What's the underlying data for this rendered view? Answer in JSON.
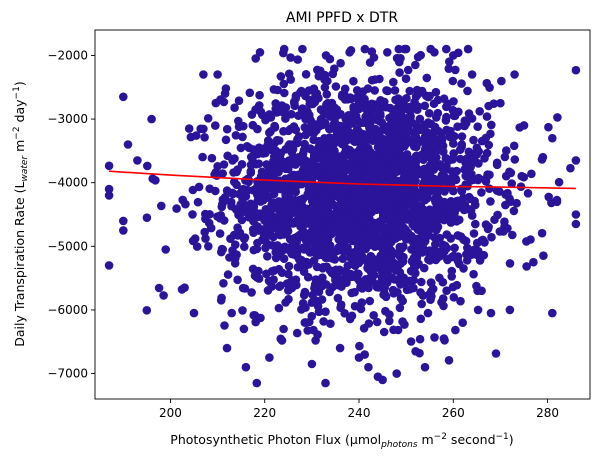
{
  "chart_data": {
    "type": "scatter",
    "title": "AMI PPFD x DTR",
    "xlabel": {
      "main": "Photosynthetic Photon Flux (µmol",
      "sub": "photons",
      "mid": " m",
      "sup1": "−2",
      "post": " second",
      "sup2": "−1",
      "end": ")"
    },
    "ylabel": {
      "main": "Daily Transpiration Rate (L",
      "sub": "water",
      "mid": " m",
      "sup1": "−2",
      "post": " day",
      "sup2": "−1",
      "end": ")"
    },
    "xlim": [
      184,
      289
    ],
    "ylim": [
      -7400,
      -1600
    ],
    "xticks": [
      200,
      220,
      240,
      260,
      280
    ],
    "yticks": [
      -2000,
      -3000,
      -4000,
      -5000,
      -6000,
      -7000
    ],
    "xtick_labels": [
      "200",
      "220",
      "240",
      "260",
      "280"
    ],
    "ytick_labels": [
      "−2000",
      "−3000",
      "−4000",
      "−5000",
      "−6000",
      "−7000"
    ],
    "grid": false,
    "series": [
      {
        "kind": "scatter",
        "color": "#2b1499",
        "cluster": {
          "x_center": 240,
          "x_sd": 14,
          "x_min": 187,
          "x_max": 286,
          "y_center": -4150,
          "y_sd": 880,
          "y_min": -7150,
          "y_max": -1900,
          "count": 2600
        },
        "points": [
          {
            "x": 187,
            "y": -5300
          },
          {
            "x": 187,
            "y": -4100
          },
          {
            "x": 187,
            "y": -4200
          },
          {
            "x": 190,
            "y": -2650
          },
          {
            "x": 190,
            "y": -4750
          },
          {
            "x": 190,
            "y": -4600
          },
          {
            "x": 191,
            "y": -3400
          },
          {
            "x": 193,
            "y": -3650
          },
          {
            "x": 195,
            "y": -4550
          },
          {
            "x": 196,
            "y": -3000
          },
          {
            "x": 199,
            "y": -5050
          },
          {
            "x": 203,
            "y": -5650
          },
          {
            "x": 205,
            "y": -6050
          },
          {
            "x": 207,
            "y": -2300
          },
          {
            "x": 210,
            "y": -2300
          },
          {
            "x": 212,
            "y": -6600
          },
          {
            "x": 213,
            "y": -6050
          },
          {
            "x": 216,
            "y": -6900
          },
          {
            "x": 219,
            "y": -1950
          },
          {
            "x": 221,
            "y": -6750
          },
          {
            "x": 224,
            "y": -6300
          },
          {
            "x": 228,
            "y": -1900
          },
          {
            "x": 230,
            "y": -6850
          },
          {
            "x": 233,
            "y": -2000
          },
          {
            "x": 236,
            "y": -6600
          },
          {
            "x": 238,
            "y": -1950
          },
          {
            "x": 240,
            "y": -6750
          },
          {
            "x": 242,
            "y": -6900
          },
          {
            "x": 244,
            "y": -7050
          },
          {
            "x": 245,
            "y": -7100
          },
          {
            "x": 246,
            "y": -1950
          },
          {
            "x": 248,
            "y": -7000
          },
          {
            "x": 250,
            "y": -1900
          },
          {
            "x": 252,
            "y": -6650
          },
          {
            "x": 254,
            "y": -6900
          },
          {
            "x": 256,
            "y": -1950
          },
          {
            "x": 258,
            "y": -6450
          },
          {
            "x": 260,
            "y": -2000
          },
          {
            "x": 262,
            "y": -6200
          },
          {
            "x": 264,
            "y": -2300
          },
          {
            "x": 266,
            "y": -5700
          },
          {
            "x": 268,
            "y": -6050
          },
          {
            "x": 270,
            "y": -2750
          },
          {
            "x": 272,
            "y": -6000
          },
          {
            "x": 273,
            "y": -2300
          },
          {
            "x": 275,
            "y": -3100
          },
          {
            "x": 277,
            "y": -5250
          },
          {
            "x": 279,
            "y": -3600
          },
          {
            "x": 281,
            "y": -3300
          },
          {
            "x": 281,
            "y": -6050
          },
          {
            "x": 282,
            "y": -4300
          },
          {
            "x": 286,
            "y": -3650
          },
          {
            "x": 286,
            "y": -4500
          },
          {
            "x": 286,
            "y": -4650
          }
        ]
      },
      {
        "kind": "trend-line",
        "color": "#ff0000",
        "x": [
          187,
          200,
          210,
          220,
          230,
          240,
          250,
          260,
          270,
          286
        ],
        "y": [
          -3820,
          -3880,
          -3920,
          -3960,
          -3990,
          -4020,
          -4040,
          -4060,
          -4070,
          -4090
        ]
      }
    ]
  }
}
